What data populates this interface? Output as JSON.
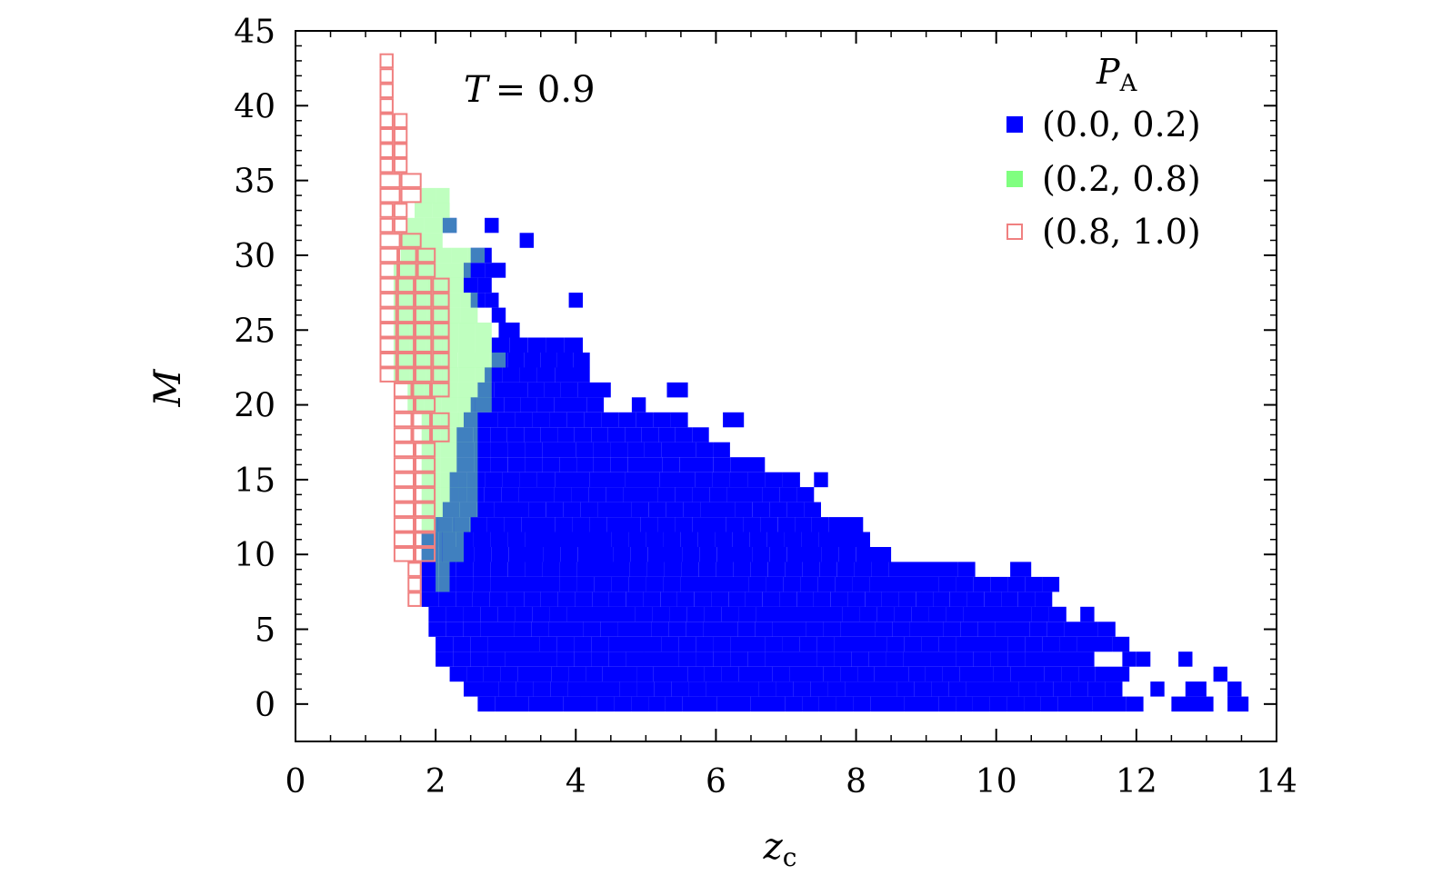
{
  "chart_data": {
    "type": "heatmap",
    "xlabel": "z",
    "xlabel_sub": "c",
    "ylabel": "M",
    "xlim": [
      0,
      14
    ],
    "ylim": [
      -2.5,
      45
    ],
    "xticks": [
      0,
      2,
      4,
      6,
      8,
      10,
      12,
      14
    ],
    "yticks": [
      0,
      5,
      10,
      15,
      20,
      25,
      30,
      35,
      40,
      45
    ],
    "annotation": {
      "var": "T",
      "eq": "= 0.9"
    },
    "cell_width": 0.245,
    "cell_height": 1.0,
    "legend": {
      "title": "P",
      "title_sub": "A",
      "position": "top-right",
      "entries": [
        {
          "label": "(0.0, 0.2)",
          "color": "#0000ff",
          "style": "filled"
        },
        {
          "label": "(0.2, 0.8)",
          "color": "#80ff80",
          "style": "filled"
        },
        {
          "label": "(0.8, 1.0)",
          "color": "#f08080",
          "style": "open"
        }
      ]
    },
    "series": [
      {
        "name": "(0.0, 0.2)",
        "color": "#0000ff",
        "runs": [
          [
            0,
            2.6,
            12.1
          ],
          [
            0,
            12.5,
            13.1
          ],
          [
            0,
            13.3,
            13.6
          ],
          [
            1,
            2.4,
            11.8
          ],
          [
            1,
            12.2,
            12.4
          ],
          [
            1,
            12.7,
            13.0
          ],
          [
            1,
            13.3,
            13.5
          ],
          [
            2,
            2.2,
            11.9
          ],
          [
            2,
            13.1,
            13.3
          ],
          [
            3,
            2.0,
            11.4
          ],
          [
            3,
            11.8,
            12.2
          ],
          [
            3,
            12.6,
            12.8
          ],
          [
            4,
            2.0,
            11.9
          ],
          [
            5,
            1.9,
            11.7
          ],
          [
            6,
            1.9,
            11.0
          ],
          [
            6,
            11.2,
            11.4
          ],
          [
            7,
            1.8,
            10.8
          ],
          [
            8,
            1.8,
            10.9
          ],
          [
            9,
            1.8,
            9.7
          ],
          [
            9,
            10.2,
            10.5
          ],
          [
            10,
            1.8,
            8.5
          ],
          [
            11,
            1.8,
            8.2
          ],
          [
            12,
            2.0,
            8.1
          ],
          [
            13,
            2.1,
            7.5
          ],
          [
            14,
            2.2,
            7.4
          ],
          [
            15,
            2.2,
            7.2
          ],
          [
            15,
            7.4,
            7.6
          ],
          [
            16,
            2.3,
            6.7
          ],
          [
            17,
            2.3,
            6.2
          ],
          [
            18,
            2.3,
            5.9
          ],
          [
            19,
            2.4,
            5.6
          ],
          [
            19,
            6.1,
            6.4
          ],
          [
            20,
            2.5,
            4.4
          ],
          [
            20,
            4.8,
            5.0
          ],
          [
            21,
            2.6,
            4.5
          ],
          [
            21,
            5.3,
            5.6
          ],
          [
            22,
            2.7,
            4.2
          ],
          [
            23,
            2.8,
            4.2
          ],
          [
            24,
            2.8,
            4.1
          ],
          [
            25,
            2.9,
            3.2
          ],
          [
            26,
            2.8,
            3.0
          ],
          [
            27,
            2.5,
            2.9
          ],
          [
            27,
            3.9,
            4.1
          ],
          [
            28,
            2.4,
            2.8
          ],
          [
            29,
            2.4,
            3.0
          ],
          [
            30,
            2.5,
            2.8
          ],
          [
            31,
            3.2,
            3.4
          ],
          [
            32,
            2.1,
            2.3
          ],
          [
            32,
            2.7,
            2.9
          ]
        ]
      },
      {
        "name": "(0.2, 0.8)",
        "color": "#80ff80",
        "runs": [
          [
            8,
            2.0,
            2.2
          ],
          [
            9,
            2.0,
            2.2
          ],
          [
            10,
            1.8,
            2.4
          ],
          [
            11,
            1.8,
            2.4
          ],
          [
            12,
            1.8,
            2.5
          ],
          [
            13,
            1.8,
            2.6
          ],
          [
            14,
            1.8,
            2.6
          ],
          [
            15,
            1.8,
            2.6
          ],
          [
            16,
            1.8,
            2.6
          ],
          [
            17,
            1.8,
            2.6
          ],
          [
            18,
            1.8,
            2.6
          ],
          [
            19,
            1.8,
            2.6
          ],
          [
            20,
            1.6,
            2.8
          ],
          [
            21,
            1.6,
            2.8
          ],
          [
            22,
            1.4,
            2.8
          ],
          [
            23,
            1.4,
            3.0
          ],
          [
            24,
            1.4,
            2.8
          ],
          [
            25,
            1.4,
            2.8
          ],
          [
            26,
            1.4,
            2.6
          ],
          [
            27,
            1.4,
            2.6
          ],
          [
            28,
            1.4,
            2.4
          ],
          [
            29,
            1.4,
            2.5
          ],
          [
            30,
            1.5,
            2.7
          ],
          [
            31,
            1.5,
            2.1
          ],
          [
            32,
            1.6,
            2.3
          ],
          [
            33,
            1.7,
            2.2
          ],
          [
            34,
            1.8,
            2.2
          ]
        ]
      },
      {
        "name": "(0.8, 1.0)",
        "color": "#f08080",
        "runs": [
          [
            7,
            1.6,
            1.8
          ],
          [
            8,
            1.6,
            1.8
          ],
          [
            9,
            1.6,
            1.8
          ],
          [
            10,
            1.4,
            2.0
          ],
          [
            11,
            1.4,
            2.0
          ],
          [
            12,
            1.4,
            2.0
          ],
          [
            13,
            1.4,
            2.0
          ],
          [
            14,
            1.4,
            2.0
          ],
          [
            15,
            1.4,
            2.0
          ],
          [
            16,
            1.4,
            2.0
          ],
          [
            17,
            1.4,
            2.0
          ],
          [
            18,
            1.4,
            2.2
          ],
          [
            19,
            1.4,
            2.2
          ],
          [
            20,
            1.4,
            2.0
          ],
          [
            21,
            1.4,
            2.2
          ],
          [
            22,
            1.2,
            2.2
          ],
          [
            23,
            1.2,
            2.2
          ],
          [
            24,
            1.2,
            2.2
          ],
          [
            25,
            1.2,
            2.2
          ],
          [
            26,
            1.2,
            2.2
          ],
          [
            27,
            1.2,
            2.2
          ],
          [
            28,
            1.2,
            2.2
          ],
          [
            29,
            1.2,
            2.0
          ],
          [
            30,
            1.2,
            2.0
          ],
          [
            31,
            1.2,
            1.8
          ],
          [
            32,
            1.2,
            1.6
          ],
          [
            33,
            1.2,
            1.6
          ],
          [
            34,
            1.2,
            1.8
          ],
          [
            35,
            1.2,
            1.8
          ],
          [
            36,
            1.2,
            1.6
          ],
          [
            37,
            1.2,
            1.6
          ],
          [
            38,
            1.2,
            1.6
          ],
          [
            39,
            1.2,
            1.6
          ],
          [
            40,
            1.2,
            1.4
          ],
          [
            41,
            1.2,
            1.4
          ],
          [
            42,
            1.2,
            1.4
          ],
          [
            43,
            1.2,
            1.4
          ]
        ]
      }
    ]
  }
}
